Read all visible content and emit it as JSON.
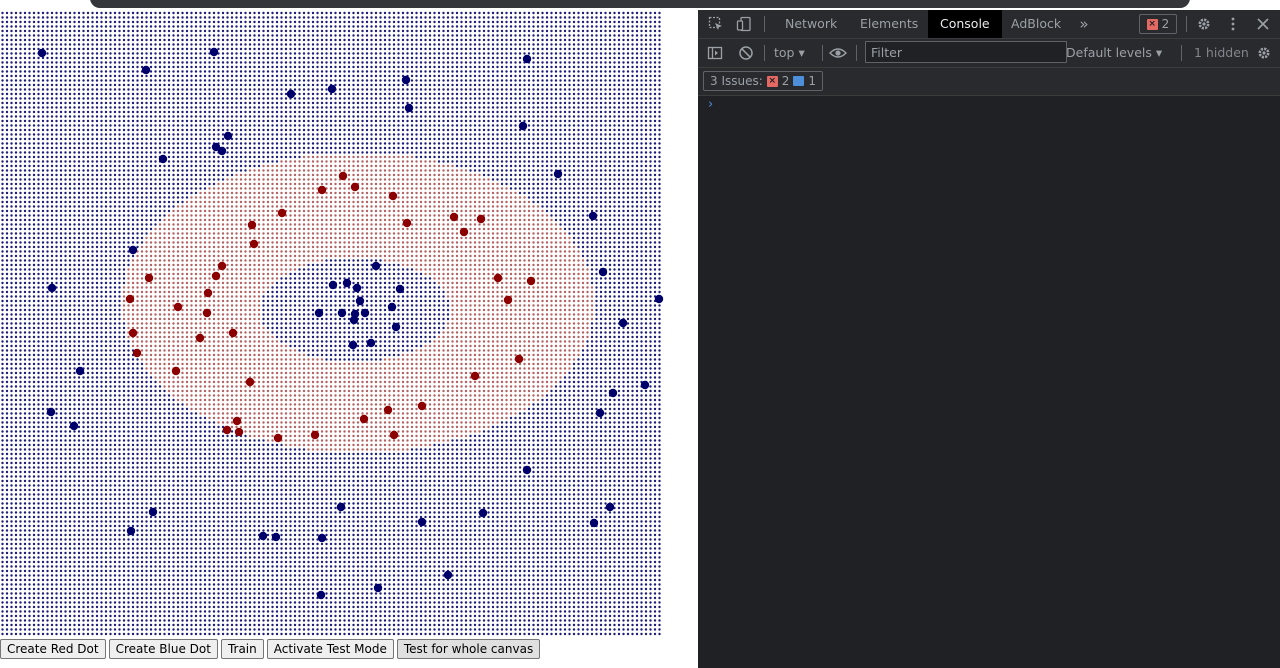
{
  "app": {
    "buttons": [
      {
        "label": "Create Red Dot"
      },
      {
        "label": "Create Blue Dot"
      },
      {
        "label": "Train"
      },
      {
        "label": "Activate Test Mode"
      },
      {
        "label": "Test for whole canvas"
      }
    ],
    "colors": {
      "red_class": "#8b0000",
      "blue_class": "#00006b",
      "red_grid_dot": "#b56060",
      "blue_grid_dot": "#1c1c7a",
      "background": "#ffffff"
    }
  },
  "devtools": {
    "tabs": [
      "Network",
      "Elements",
      "Console",
      "AdBlock"
    ],
    "active_tab": "Console",
    "error_count": "2",
    "context": "top",
    "filter_placeholder": "Filter",
    "levels": "Default levels",
    "hidden_text": "1 hidden",
    "issues": {
      "label": "3 Issues:",
      "errors": "2",
      "info": "1"
    },
    "icons": [
      "inspect-icon",
      "device-toggle-icon",
      "more-tabs-icon",
      "settings-icon",
      "kebab-menu-icon",
      "close-icon",
      "sidebar-toggle-icon",
      "clear-console-icon",
      "eye-icon",
      "console-settings-icon",
      "prompt-chevron-icon"
    ],
    "colors": {
      "panel_bg": "#202124",
      "toolbar_bg": "#292a2d",
      "active_tab_bg": "#000000",
      "error": "#e46962",
      "info": "#4e8fdb"
    }
  }
}
